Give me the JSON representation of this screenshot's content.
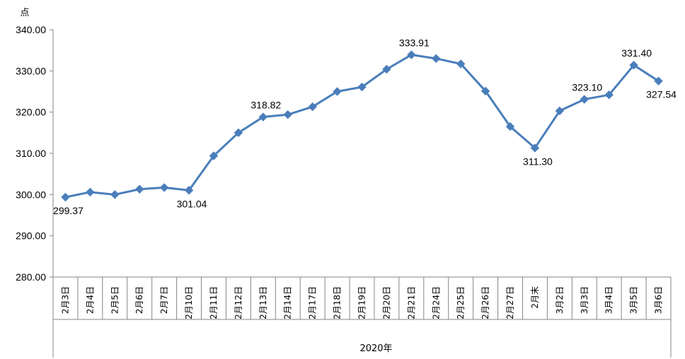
{
  "chart_data": {
    "type": "line",
    "title": "",
    "xlabel": "",
    "ylabel": "点",
    "x_group_label": "2020年",
    "ylim": [
      280,
      340
    ],
    "yticks": [
      "280.00",
      "290.00",
      "300.00",
      "310.00",
      "320.00",
      "330.00",
      "340.00"
    ],
    "grid": false,
    "legend": "none",
    "line_color": "#4A7EBB",
    "categories": [
      "2月3日",
      "2月4日",
      "2月5日",
      "2月6日",
      "2月7日",
      "2月10日",
      "2月11日",
      "2月12日",
      "2月13日",
      "2月14日",
      "2月17日",
      "2月18日",
      "2月19日",
      "2月20日",
      "2月21日",
      "2月24日",
      "2月25日",
      "2月26日",
      "2月27日",
      "2月末",
      "3月2日",
      "3月3日",
      "3月4日",
      "3月5日",
      "3月6日"
    ],
    "series": [
      {
        "values": [
          299.37,
          300.6,
          300.0,
          301.3,
          301.7,
          301.04,
          309.4,
          315.0,
          318.82,
          319.4,
          321.3,
          325.0,
          326.1,
          330.4,
          333.91,
          333.0,
          331.7,
          325.1,
          316.5,
          311.3,
          320.3,
          323.1,
          324.2,
          331.4,
          327.54
        ]
      }
    ],
    "data_labels": [
      {
        "index": 0,
        "text": "299.37",
        "position": "below"
      },
      {
        "index": 5,
        "text": "301.04",
        "position": "below"
      },
      {
        "index": 8,
        "text": "318.82",
        "position": "above"
      },
      {
        "index": 14,
        "text": "333.91",
        "position": "above"
      },
      {
        "index": 19,
        "text": "311.30",
        "position": "below"
      },
      {
        "index": 21,
        "text": "323.10",
        "position": "above"
      },
      {
        "index": 23,
        "text": "331.40",
        "position": "above"
      },
      {
        "index": 24,
        "text": "327.54",
        "position": "below"
      }
    ]
  }
}
